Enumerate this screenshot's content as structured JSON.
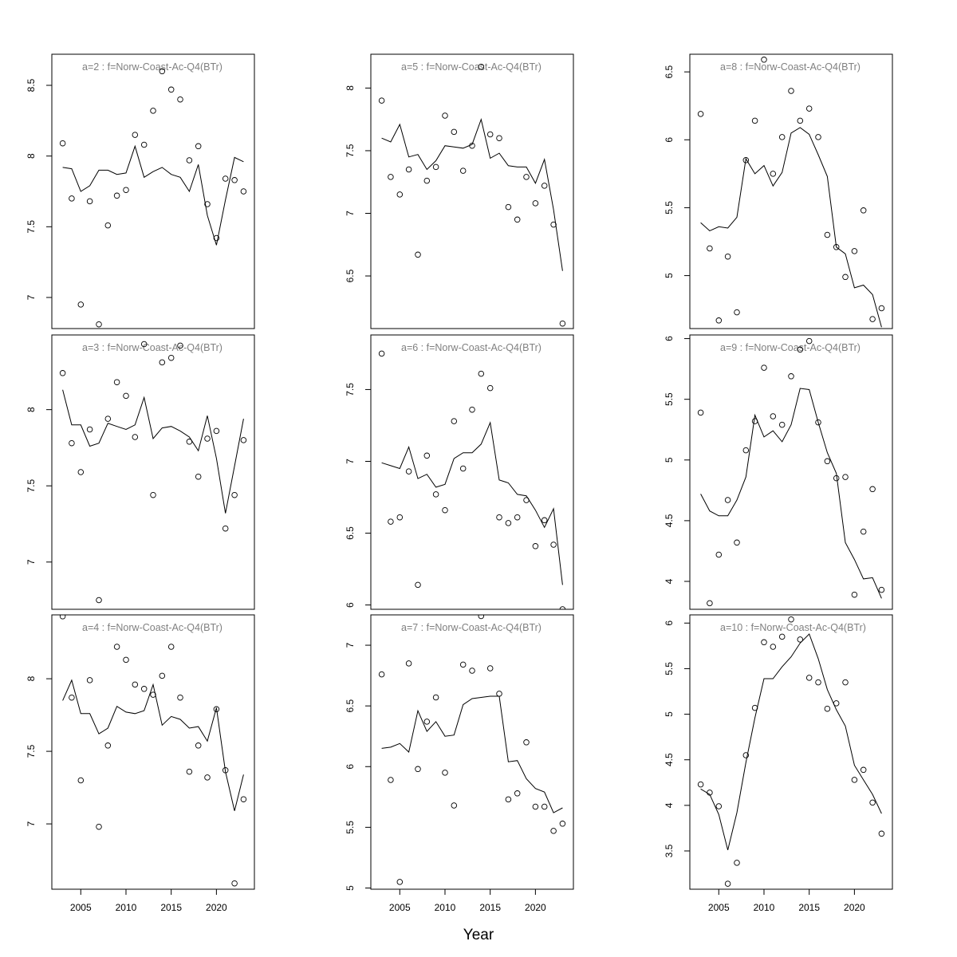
{
  "xlabel": "Year",
  "chart_data": [
    {
      "type": "scatter",
      "title": "a=2  :  f=Norw-Coast-Ac-Q4(BTr)",
      "ylim": [
        6.78,
        8.72
      ],
      "yticks": [
        7.0,
        7.5,
        8.0,
        8.5
      ],
      "xlim": [
        2001.8,
        2024.2
      ],
      "xticks": [
        2005,
        2010,
        2015,
        2020
      ],
      "show_xaxis": false,
      "x": [
        2003,
        2004,
        2005,
        2006,
        2007,
        2008,
        2009,
        2010,
        2011,
        2012,
        2013,
        2014,
        2015,
        2016,
        2017,
        2018,
        2019,
        2020,
        2021,
        2022,
        2023
      ],
      "series": [
        {
          "role": "observed",
          "values": [
            8.09,
            7.7,
            6.95,
            7.68,
            6.81,
            7.51,
            7.72,
            7.76,
            8.15,
            8.08,
            8.32,
            8.6,
            8.47,
            8.4,
            7.97,
            8.07,
            7.66,
            7.42,
            7.84,
            7.83,
            7.75
          ]
        },
        {
          "role": "fitted",
          "values": [
            7.92,
            7.91,
            7.75,
            7.79,
            7.9,
            7.9,
            7.87,
            7.88,
            8.07,
            7.85,
            7.89,
            7.92,
            7.87,
            7.85,
            7.75,
            7.94,
            7.58,
            7.37,
            7.69,
            7.99,
            7.96
          ]
        }
      ]
    },
    {
      "type": "scatter",
      "title": "a=5  :  f=Norw-Coast-Ac-Q4(BTr)",
      "ylim": [
        6.08,
        8.27
      ],
      "yticks": [
        6.5,
        7.0,
        7.5,
        8.0
      ],
      "xlim": [
        2001.8,
        2024.2
      ],
      "xticks": [
        2005,
        2010,
        2015,
        2020
      ],
      "show_xaxis": false,
      "x": [
        2003,
        2004,
        2005,
        2006,
        2007,
        2008,
        2009,
        2010,
        2011,
        2012,
        2013,
        2014,
        2015,
        2016,
        2017,
        2018,
        2019,
        2020,
        2021,
        2022,
        2023
      ],
      "series": [
        {
          "role": "observed",
          "values": [
            7.9,
            7.29,
            7.15,
            7.35,
            6.67,
            7.26,
            7.37,
            7.78,
            7.65,
            7.34,
            7.54,
            8.17,
            7.63,
            7.6,
            7.05,
            6.95,
            7.29,
            7.08,
            7.22,
            6.91,
            6.12
          ]
        },
        {
          "role": "fitted",
          "values": [
            7.6,
            7.57,
            7.71,
            7.45,
            7.47,
            7.35,
            7.42,
            7.54,
            7.53,
            7.52,
            7.55,
            7.75,
            7.44,
            7.48,
            7.38,
            7.37,
            7.37,
            7.24,
            7.43,
            7.03,
            6.54
          ]
        }
      ]
    },
    {
      "type": "scatter",
      "title": "a=8  :  f=Norw-Coast-Ac-Q4(BTr)",
      "ylim": [
        4.61,
        6.63
      ],
      "yticks": [
        5.0,
        5.5,
        6.0,
        6.5
      ],
      "xlim": [
        2001.8,
        2024.2
      ],
      "xticks": [
        2005,
        2010,
        2015,
        2020
      ],
      "show_xaxis": false,
      "x": [
        2003,
        2004,
        2005,
        2006,
        2007,
        2008,
        2009,
        2010,
        2011,
        2012,
        2013,
        2014,
        2015,
        2016,
        2017,
        2018,
        2019,
        2020,
        2021,
        2022,
        2023
      ],
      "series": [
        {
          "role": "observed",
          "values": [
            6.19,
            5.2,
            4.67,
            5.14,
            4.73,
            5.85,
            6.14,
            6.59,
            5.75,
            6.02,
            6.36,
            6.14,
            6.23,
            6.02,
            5.3,
            5.21,
            4.99,
            5.18,
            5.48,
            4.68,
            4.76
          ]
        },
        {
          "role": "fitted",
          "values": [
            5.39,
            5.33,
            5.36,
            5.35,
            5.43,
            5.86,
            5.75,
            5.81,
            5.66,
            5.76,
            6.05,
            6.09,
            6.04,
            5.89,
            5.73,
            5.21,
            5.16,
            4.91,
            4.93,
            4.86,
            4.62
          ]
        }
      ]
    },
    {
      "type": "scatter",
      "title": "a=3  :  f=Norw-Coast-Ac-Q4(BTr)",
      "ylim": [
        6.69,
        8.49
      ],
      "yticks": [
        7.0,
        7.5,
        8.0
      ],
      "xlim": [
        2001.8,
        2024.2
      ],
      "xticks": [
        2005,
        2010,
        2015,
        2020
      ],
      "show_xaxis": false,
      "x": [
        2003,
        2004,
        2005,
        2006,
        2007,
        2008,
        2009,
        2010,
        2011,
        2012,
        2013,
        2014,
        2015,
        2016,
        2017,
        2018,
        2019,
        2020,
        2021,
        2022,
        2023
      ],
      "series": [
        {
          "role": "observed",
          "values": [
            8.24,
            7.78,
            7.59,
            7.87,
            6.75,
            7.94,
            8.18,
            8.09,
            7.82,
            8.43,
            7.44,
            8.31,
            8.34,
            8.42,
            7.79,
            7.56,
            7.81,
            7.86,
            7.22,
            7.44,
            7.8
          ]
        },
        {
          "role": "fitted",
          "values": [
            8.13,
            7.9,
            7.9,
            7.76,
            7.78,
            7.91,
            7.89,
            7.87,
            7.9,
            8.08,
            7.81,
            7.88,
            7.89,
            7.86,
            7.82,
            7.73,
            7.96,
            7.68,
            7.32,
            7.63,
            7.94
          ]
        }
      ]
    },
    {
      "type": "scatter",
      "title": "a=6  :  f=Norw-Coast-Ac-Q4(BTr)",
      "ylim": [
        5.97,
        7.88
      ],
      "yticks": [
        6.0,
        6.5,
        7.0,
        7.5
      ],
      "xlim": [
        2001.8,
        2024.2
      ],
      "xticks": [
        2005,
        2010,
        2015,
        2020
      ],
      "show_xaxis": false,
      "x": [
        2003,
        2004,
        2005,
        2006,
        2007,
        2008,
        2009,
        2010,
        2011,
        2012,
        2013,
        2014,
        2015,
        2016,
        2017,
        2018,
        2019,
        2020,
        2021,
        2022,
        2023
      ],
      "series": [
        {
          "role": "observed",
          "values": [
            7.75,
            6.58,
            6.61,
            6.93,
            6.14,
            7.04,
            6.77,
            6.66,
            7.28,
            6.95,
            7.36,
            7.61,
            7.51,
            6.61,
            6.57,
            6.61,
            6.73,
            6.41,
            6.59,
            6.42,
            5.97
          ]
        },
        {
          "role": "fitted",
          "values": [
            6.99,
            6.97,
            6.95,
            7.1,
            6.88,
            6.91,
            6.82,
            6.84,
            7.02,
            7.06,
            7.06,
            7.12,
            7.27,
            6.87,
            6.85,
            6.77,
            6.76,
            6.66,
            6.54,
            6.67,
            6.14
          ]
        }
      ]
    },
    {
      "type": "scatter",
      "title": "a=9  :  f=Norw-Coast-Ac-Q4(BTr)",
      "ylim": [
        3.77,
        6.03
      ],
      "yticks": [
        4.0,
        4.5,
        5.0,
        5.5,
        6.0
      ],
      "xlim": [
        2001.8,
        2024.2
      ],
      "xticks": [
        2005,
        2010,
        2015,
        2020
      ],
      "show_xaxis": false,
      "x": [
        2003,
        2004,
        2005,
        2006,
        2007,
        2008,
        2009,
        2010,
        2011,
        2012,
        2013,
        2014,
        2015,
        2016,
        2017,
        2018,
        2019,
        2020,
        2021,
        2022,
        2023
      ],
      "series": [
        {
          "role": "observed",
          "values": [
            5.39,
            3.82,
            4.22,
            4.67,
            4.32,
            5.08,
            5.32,
            5.76,
            5.36,
            5.29,
            5.69,
            5.91,
            5.98,
            5.31,
            4.99,
            4.85,
            4.86,
            3.89,
            4.41,
            4.76,
            3.93
          ]
        },
        {
          "role": "fitted",
          "values": [
            4.72,
            4.58,
            4.54,
            4.54,
            4.67,
            4.86,
            5.37,
            5.19,
            5.24,
            5.15,
            5.29,
            5.59,
            5.58,
            5.31,
            5.06,
            4.89,
            4.32,
            4.18,
            4.02,
            4.03,
            3.86
          ]
        }
      ]
    },
    {
      "type": "scatter",
      "title": "a=4  :  f=Norw-Coast-Ac-Q4(BTr)",
      "ylim": [
        6.55,
        8.44
      ],
      "yticks": [
        7.0,
        7.5,
        8.0
      ],
      "xlim": [
        2001.8,
        2024.2
      ],
      "xticks": [
        2005,
        2010,
        2015,
        2020
      ],
      "show_xaxis": true,
      "x": [
        2003,
        2004,
        2005,
        2006,
        2007,
        2008,
        2009,
        2010,
        2011,
        2012,
        2013,
        2014,
        2015,
        2016,
        2017,
        2018,
        2019,
        2020,
        2021,
        2022,
        2023
      ],
      "series": [
        {
          "role": "observed",
          "values": [
            8.43,
            7.87,
            7.3,
            7.99,
            6.98,
            7.54,
            8.22,
            8.13,
            7.96,
            7.93,
            7.89,
            8.02,
            8.22,
            7.87,
            7.36,
            7.54,
            7.32,
            7.79,
            7.37,
            6.59,
            7.17
          ]
        },
        {
          "role": "fitted",
          "values": [
            7.85,
            7.99,
            7.76,
            7.76,
            7.62,
            7.66,
            7.81,
            7.77,
            7.76,
            7.78,
            7.96,
            7.68,
            7.74,
            7.72,
            7.66,
            7.67,
            7.57,
            7.8,
            7.36,
            7.09,
            7.34
          ]
        }
      ]
    },
    {
      "type": "scatter",
      "title": "a=7  :  f=Norw-Coast-Ac-Q4(BTr)",
      "ylim": [
        4.99,
        7.25
      ],
      "yticks": [
        5.0,
        5.5,
        6.0,
        6.5,
        7.0
      ],
      "xlim": [
        2001.8,
        2024.2
      ],
      "xticks": [
        2005,
        2010,
        2015,
        2020
      ],
      "show_xaxis": true,
      "x": [
        2003,
        2004,
        2005,
        2006,
        2007,
        2008,
        2009,
        2010,
        2011,
        2012,
        2013,
        2014,
        2015,
        2016,
        2017,
        2018,
        2019,
        2020,
        2021,
        2022,
        2023
      ],
      "series": [
        {
          "role": "observed",
          "values": [
            6.76,
            5.89,
            5.05,
            6.85,
            5.98,
            6.37,
            6.57,
            5.95,
            5.68,
            6.84,
            6.79,
            7.24,
            6.81,
            6.6,
            5.73,
            5.78,
            6.2,
            5.67,
            5.67,
            5.47,
            5.53
          ]
        },
        {
          "role": "fitted",
          "values": [
            6.15,
            6.16,
            6.19,
            6.12,
            6.46,
            6.29,
            6.37,
            6.25,
            6.26,
            6.51,
            6.56,
            6.57,
            6.58,
            6.58,
            6.04,
            6.05,
            5.9,
            5.82,
            5.79,
            5.62,
            5.66
          ]
        }
      ]
    },
    {
      "type": "scatter",
      "title": "a=10  :  f=Norw-Coast-Ac-Q4(BTr)",
      "ylim": [
        3.08,
        6.09
      ],
      "yticks": [
        3.5,
        4.0,
        4.5,
        5.0,
        5.5,
        6.0
      ],
      "xlim": [
        2001.8,
        2024.2
      ],
      "xticks": [
        2005,
        2010,
        2015,
        2020
      ],
      "show_xaxis": true,
      "x": [
        2003,
        2004,
        2005,
        2006,
        2007,
        2008,
        2009,
        2010,
        2011,
        2012,
        2013,
        2014,
        2015,
        2016,
        2017,
        2018,
        2019,
        2020,
        2021,
        2022,
        2023
      ],
      "series": [
        {
          "role": "observed",
          "values": [
            4.23,
            4.14,
            3.99,
            3.14,
            3.37,
            4.55,
            5.07,
            5.79,
            5.74,
            5.85,
            6.04,
            5.82,
            5.4,
            5.35,
            5.06,
            5.12,
            5.35,
            4.28,
            4.39,
            4.03,
            3.69
          ]
        },
        {
          "role": "fitted",
          "values": [
            4.18,
            4.12,
            3.9,
            3.51,
            3.92,
            4.47,
            4.96,
            5.39,
            5.39,
            5.52,
            5.63,
            5.78,
            5.88,
            5.61,
            5.27,
            5.05,
            4.87,
            4.44,
            4.28,
            4.12,
            3.91
          ]
        }
      ]
    }
  ]
}
